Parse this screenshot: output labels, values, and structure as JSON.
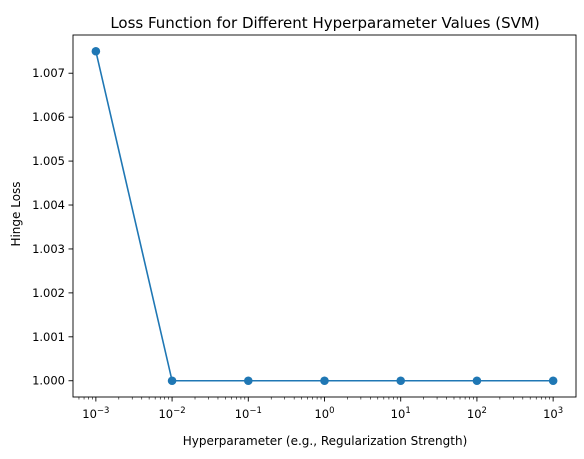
{
  "chart_data": {
    "type": "line",
    "title": "Loss Function for Different Hyperparameter Values (SVM)",
    "xlabel": "Hyperparameter (e.g., Regularization Strength)",
    "ylabel": "Hinge Loss",
    "xscale": "log",
    "grid": false,
    "legend": "none",
    "x": [
      0.001,
      0.01,
      0.1,
      1,
      10,
      100,
      1000
    ],
    "x_tick_labels": [
      {
        "base": "10",
        "exp": "−3"
      },
      {
        "base": "10",
        "exp": "−2"
      },
      {
        "base": "10",
        "exp": "−1"
      },
      {
        "base": "10",
        "exp": "0"
      },
      {
        "base": "10",
        "exp": "1"
      },
      {
        "base": "10",
        "exp": "2"
      },
      {
        "base": "10",
        "exp": "3"
      }
    ],
    "y_ticks": [
      "1.000",
      "1.001",
      "1.002",
      "1.003",
      "1.004",
      "1.005",
      "1.006",
      "1.007"
    ],
    "ylim": [
      0.99963,
      1.00787
    ],
    "xlim_log10": [
      -3.3,
      3.3
    ],
    "series": [
      {
        "color": "#1f77b4",
        "marker": "circle",
        "values": [
          1.0075,
          1.0,
          1.0,
          1.0,
          1.0,
          1.0,
          1.0
        ]
      }
    ]
  }
}
